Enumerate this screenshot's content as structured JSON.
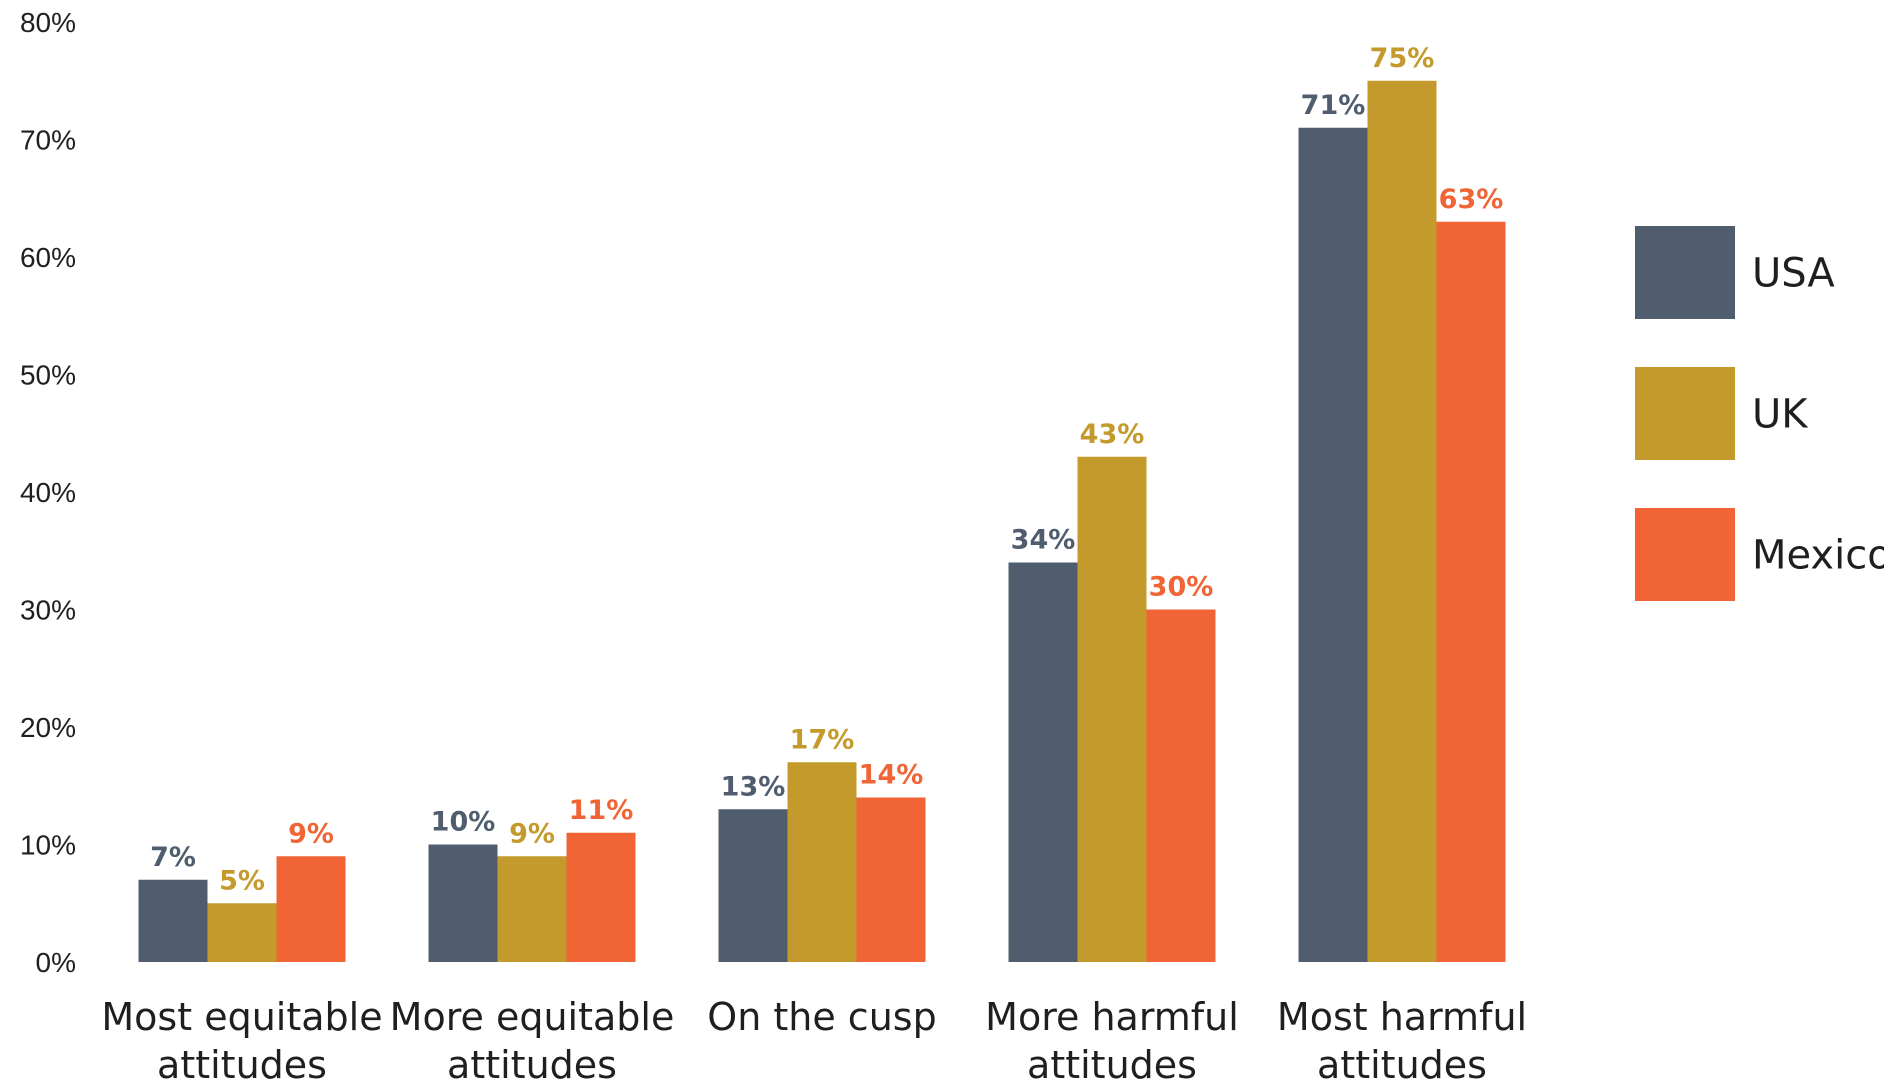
{
  "chart_data": {
    "type": "bar",
    "title": "",
    "xlabel": "",
    "ylabel": "",
    "ylim": [
      0,
      80
    ],
    "y_ticks": [
      "0%",
      "10%",
      "20%",
      "30%",
      "40%",
      "50%",
      "60%",
      "70%",
      "80%"
    ],
    "grid": false,
    "legend_position": "right",
    "categories": [
      [
        "Most equitable",
        "attitudes"
      ],
      [
        "More equitable",
        "attitudes"
      ],
      [
        "On the cusp"
      ],
      [
        "More harmful",
        "attitudes"
      ],
      [
        "Most harmful",
        "attitudes"
      ]
    ],
    "series": [
      {
        "name": "USA",
        "color": "#4f5d6e",
        "values": [
          7,
          10,
          13,
          34,
          71
        ],
        "labels": [
          "7%",
          "10%",
          "13%",
          "34%",
          "71%"
        ]
      },
      {
        "name": "UK",
        "color": "#c49a2c",
        "values": [
          5,
          9,
          17,
          43,
          75
        ],
        "labels": [
          "5%",
          "9%",
          "17%",
          "43%",
          "75%"
        ]
      },
      {
        "name": "Mexico",
        "color": "#f06436",
        "values": [
          9,
          11,
          14,
          30,
          63
        ],
        "labels": [
          "9%",
          "11%",
          "14%",
          "30%",
          "63%"
        ]
      }
    ]
  }
}
